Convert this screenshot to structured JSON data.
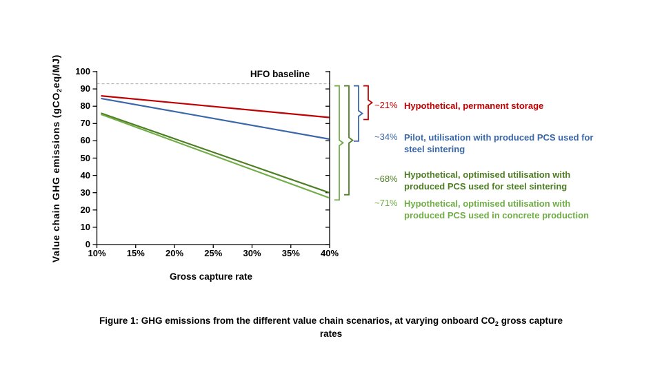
{
  "chart": {
    "baseline_label": "HFO baseline",
    "y_axis": {
      "label_pre": "Value chain GHG emissions (gCO",
      "label_sub": "2",
      "label_post": "eq/MJ)",
      "ticks": [
        "0",
        "10",
        "20",
        "30",
        "40",
        "50",
        "60",
        "70",
        "80",
        "90",
        "100"
      ]
    },
    "x_axis": {
      "label": "Gross capture rate",
      "ticks": [
        "10%",
        "15%",
        "20%",
        "25%",
        "30%",
        "35%",
        "40%"
      ]
    }
  },
  "legend": {
    "items": [
      {
        "pct": "~21%",
        "lines": [
          "Hypothetical, permanent storage"
        ],
        "color": "#c00000"
      },
      {
        "pct": "~34%",
        "lines": [
          "Pilot, utilisation with produced PCS used for",
          "steel sintering"
        ],
        "color": "#3a67a8"
      },
      {
        "pct": "~68%",
        "lines": [
          "Hypothetical, optimised utilisation with",
          "produced PCS used for steel sintering"
        ],
        "color": "#4e7e24"
      },
      {
        "pct": "~71%",
        "lines": [
          "Hypothetical, optimised utilisation with",
          "produced PCS used in concrete production"
        ],
        "color": "#70ad47"
      }
    ]
  },
  "caption": {
    "line1_pre": "Figure 1: GHG emissions from the different value chain scenarios, at varying onboard CO",
    "line1_sub": "2",
    "line1_post": " gross capture",
    "line2": "rates"
  },
  "chart_data": {
    "type": "line",
    "title": "",
    "xlabel": "Gross capture rate",
    "ylabel": "Value chain GHG emissions (gCO2eq/MJ)",
    "x": [
      10,
      40
    ],
    "x_unit": "%",
    "xlim": [
      10,
      40
    ],
    "ylim": [
      0,
      100
    ],
    "x_ticks": [
      10,
      15,
      20,
      25,
      30,
      35,
      40
    ],
    "y_tick_step": 10,
    "grid": false,
    "legend_position": "right",
    "baseline": {
      "label": "HFO baseline",
      "value": 93,
      "style": "dashed",
      "color": "#a6a6a6"
    },
    "series": [
      {
        "name": "Hypothetical, permanent storage",
        "values": [
          86,
          73.5
        ],
        "color": "#c00000",
        "reduction_vs_baseline": "~21%"
      },
      {
        "name": "Pilot, utilisation with produced PCS used for steel sintering",
        "values": [
          84.5,
          61
        ],
        "color": "#3a67a8",
        "reduction_vs_baseline": "~34%"
      },
      {
        "name": "Hypothetical, optimised utilisation with produced PCS used for steel sintering",
        "values": [
          76,
          30
        ],
        "color": "#4e7e24",
        "reduction_vs_baseline": "~68%"
      },
      {
        "name": "Hypothetical, optimised utilisation with produced PCS used in concrete production",
        "values": [
          75.3,
          27
        ],
        "color": "#70ad47",
        "reduction_vs_baseline": "~71%"
      }
    ]
  }
}
